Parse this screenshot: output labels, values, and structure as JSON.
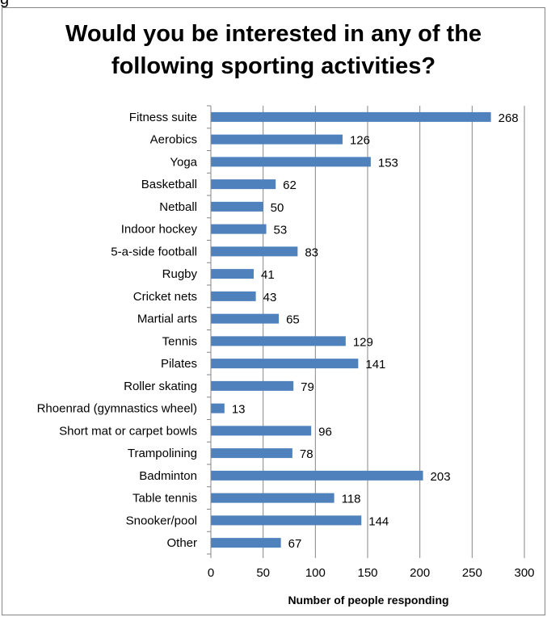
{
  "corner_text": "g",
  "chart_data": {
    "type": "bar",
    "orientation": "horizontal",
    "title": "Would you be interested in any of the following sporting activities?",
    "title_lines": [
      "Would you be interested in any of the",
      "following sporting activities?"
    ],
    "xlabel": "Number of people responding",
    "ylabel": "",
    "xlim": [
      0,
      300
    ],
    "x_ticks": [
      0,
      50,
      100,
      150,
      200,
      250,
      300
    ],
    "grid": "vertical",
    "bar_color": "#4F81BD",
    "categories": [
      "Fitness suite",
      "Aerobics",
      "Yoga",
      "Basketball",
      "Netball",
      "Indoor hockey",
      "5-a-side football",
      "Rugby",
      "Cricket nets",
      "Martial arts",
      "Tennis",
      "Pilates",
      "Roller skating",
      "Rhoenrad (gymnastics wheel)",
      "Short mat or carpet bowls",
      "Trampolining",
      "Badminton",
      "Table tennis",
      "Snooker/pool",
      "Other"
    ],
    "values": [
      268,
      126,
      153,
      62,
      50,
      53,
      83,
      41,
      43,
      65,
      129,
      141,
      79,
      13,
      96,
      78,
      203,
      118,
      144,
      67
    ]
  }
}
